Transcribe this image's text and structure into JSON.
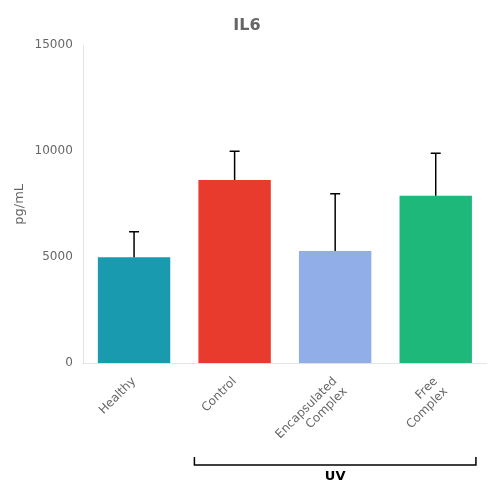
{
  "chart_data": {
    "type": "bar",
    "title": "IL6",
    "ylabel": "pg/mL",
    "categories": [
      "Healthy",
      "Control",
      "Encapsulated\nComplex",
      "Free\nComplex"
    ],
    "values": [
      5000,
      8650,
      5300,
      7900
    ],
    "errors": [
      1200,
      1350,
      2700,
      2000
    ],
    "colors": [
      "#1a9aaf",
      "#e83b2e",
      "#92aee8",
      "#1db87a"
    ],
    "ylim": [
      0,
      15000
    ],
    "yticks": [
      0,
      5000,
      10000,
      15000
    ],
    "grid": false,
    "legend": false,
    "annotations": [
      {
        "text": "UV",
        "span": [
          "Control",
          "Free\nComplex"
        ]
      }
    ]
  }
}
